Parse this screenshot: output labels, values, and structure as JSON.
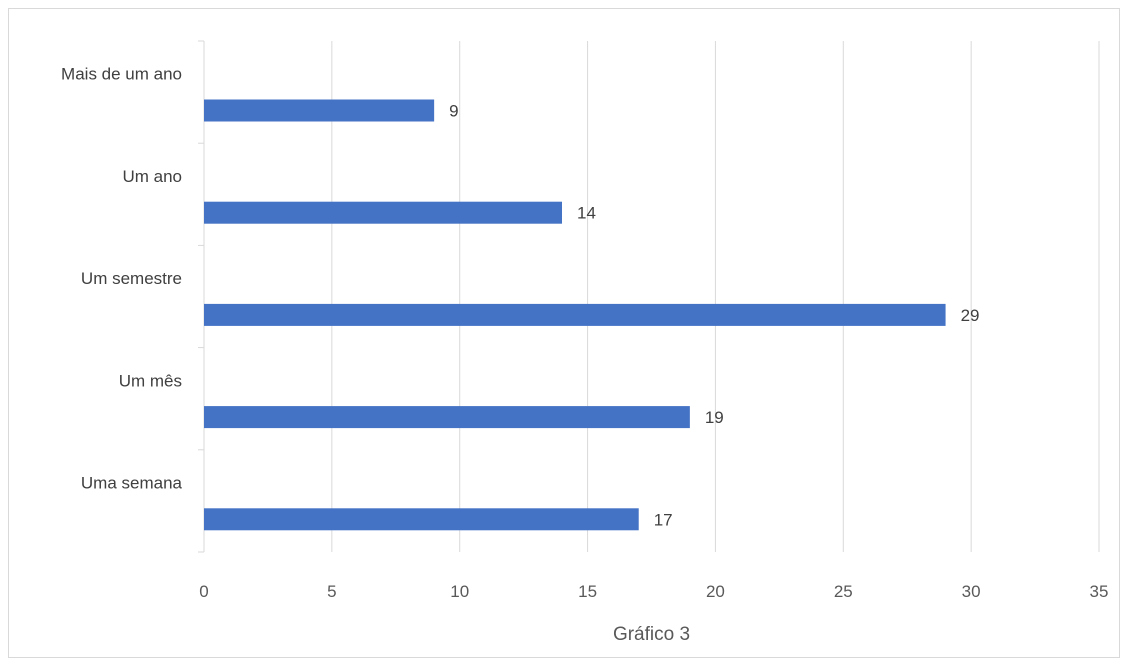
{
  "chart_data": {
    "type": "bar",
    "orientation": "horizontal",
    "categories": [
      "Mais de um ano",
      "Um ano",
      "Um semestre",
      "Um mês",
      "Uma semana"
    ],
    "values": [
      9,
      14,
      29,
      19,
      17
    ],
    "xlim": [
      0,
      35
    ],
    "x_ticks": [
      0,
      5,
      10,
      15,
      20,
      25,
      30,
      35
    ],
    "xlabel": "Gráfico 3",
    "ylabel": "",
    "title": "",
    "grid": "vertical",
    "legend": "none",
    "bar_color": "#4472c4",
    "data_labels": true
  }
}
